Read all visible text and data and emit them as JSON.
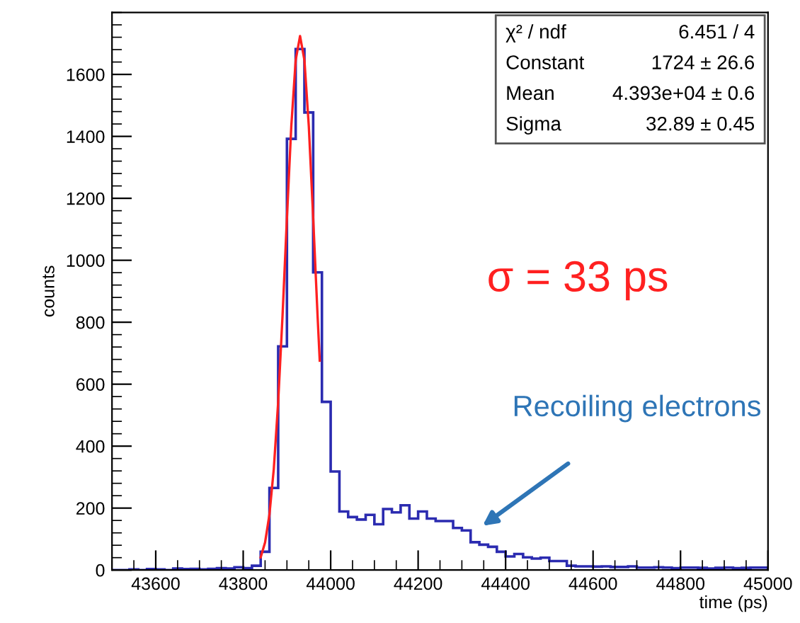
{
  "chart_data": {
    "type": "histogram",
    "xlabel": "time (ps)",
    "ylabel": "counts",
    "xlim": [
      43500,
      45000
    ],
    "xticks": [
      43600,
      43800,
      44000,
      44200,
      44400,
      44600,
      44800,
      45000
    ],
    "ylim": [
      0,
      1800
    ],
    "yticks": [
      0,
      200,
      400,
      600,
      800,
      1000,
      1200,
      1400,
      1600
    ],
    "grid": false,
    "series": [
      {
        "color": "#2b2bb0",
        "bins": [
          43500,
          43520,
          43540,
          43560,
          43580,
          43600,
          43620,
          43640,
          43660,
          43680,
          43700,
          43720,
          43740,
          43760,
          43780,
          43800,
          43820,
          43840,
          43860,
          43880,
          43900,
          43920,
          43940,
          43960,
          43980,
          44000,
          44020,
          44040,
          44060,
          44080,
          44100,
          44120,
          44140,
          44160,
          44180,
          44200,
          44220,
          44240,
          44260,
          44280,
          44300,
          44320,
          44340,
          44360,
          44380,
          44400,
          44420,
          44440,
          44460,
          44480,
          44500,
          44520,
          44540,
          44560,
          44580,
          44600,
          44620,
          44640,
          44660,
          44680,
          44700,
          44720,
          44740,
          44760,
          44780,
          44800,
          44820,
          44840,
          44860,
          44880,
          44900,
          44920,
          44940,
          44960,
          44980,
          45000
        ],
        "values": [
          0,
          0,
          2,
          0,
          3,
          2,
          0,
          5,
          3,
          4,
          2,
          4,
          6,
          5,
          9,
          6,
          14,
          59,
          265,
          722,
          1392,
          1682,
          1477,
          961,
          543,
          318,
          189,
          171,
          163,
          178,
          148,
          197,
          186,
          209,
          166,
          189,
          166,
          158,
          158,
          136,
          128,
          90,
          82,
          75,
          59,
          44,
          52,
          41,
          37,
          40,
          29,
          29,
          14,
          12,
          12,
          11,
          12,
          10,
          10,
          12,
          8,
          8,
          9,
          8,
          6,
          8,
          8,
          7,
          5,
          7,
          8,
          6,
          7,
          8,
          8
        ]
      },
      {
        "type": "line",
        "color": "#ff2020",
        "x": [
          43840,
          43850,
          43860,
          43870,
          43880,
          43890,
          43900,
          43910,
          43920,
          43930,
          43940,
          43950,
          43960,
          43970,
          43975
        ],
        "values": [
          41,
          89,
          179,
          327,
          543,
          823,
          1137,
          1433,
          1646,
          1724,
          1646,
          1433,
          1137,
          823,
          676
        ]
      }
    ],
    "annotations": [
      "χ² / ndf",
      "6.451 / 4",
      "Constant",
      "1724 ± 26.6",
      "Mean",
      "4.393e+04 ± 0.6",
      "Sigma",
      "32.89 ± 0.45",
      "σ = 33 ps",
      "Recoiling electrons"
    ]
  }
}
